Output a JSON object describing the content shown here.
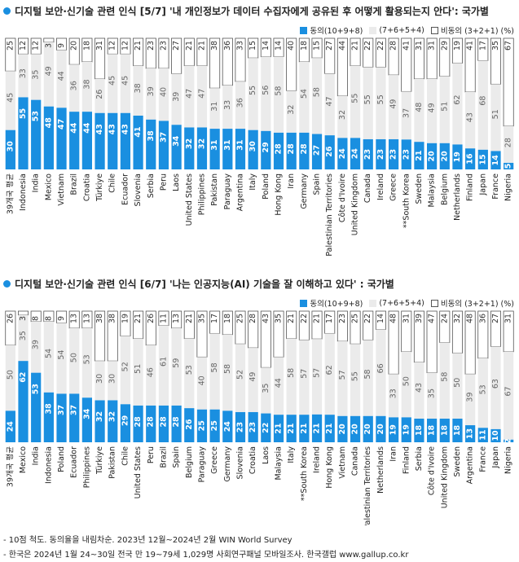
{
  "legend": {
    "agree": "동의(10+9+8)",
    "neutral": "(7+6+5+4)",
    "disagree": "비동의 (3+2+1) (%)"
  },
  "colors": {
    "agree": "#1a8fe0",
    "neutral": "#ebebeb",
    "disagree": "#ffffff",
    "title_bullet": "#1a8fe0"
  },
  "footnotes": [
    "- 10점 척도. 동의율을 내림차순. 2023년 12월~2024년 2월 WIN World Survey",
    "- 한국은 2024년 1월 24~30일 전국 만 19~79세 1,029명 사회연구패널 모바일조사. 한국갤럽 www.gallup.co.kr"
  ],
  "chart_data": [
    {
      "type": "bar",
      "stacked": true,
      "title": "디지털 보안·신기술 관련 인식 [5/7] '내 개인정보가 데이터 수집자에게 공유된 후 어떻게 활용되는지 안다': 국가별",
      "categories": [
        "39개국 평균",
        "Indonesia",
        "India",
        "Mexico",
        "Vietnam",
        "Brazil",
        "Croatia",
        "Türkiye",
        "Chile",
        "Ecuador",
        "Slovenia",
        "Serbia",
        "Peru",
        "Laos",
        "United States",
        "Philippines",
        "Pakistan",
        "Paraguay",
        "Argentina",
        "Italy",
        "Poland",
        "Hong Kong",
        "Iran",
        "Germany",
        "Spain",
        "Palestinian Territories",
        "Côte d'Ivoire",
        "United Kingdom",
        "Canada",
        "Ireland",
        "Greece",
        "**South Korea",
        "Sweden",
        "Malaysia",
        "Belgium",
        "Netherlands",
        "Finland",
        "Japan",
        "France",
        "Nigeria"
      ],
      "series": [
        {
          "name": "동의(10+9+8)",
          "values": [
            30,
            55,
            53,
            48,
            47,
            44,
            44,
            43,
            43,
            43,
            41,
            38,
            37,
            34,
            32,
            32,
            31,
            31,
            31,
            30,
            29,
            28,
            28,
            28,
            27,
            26,
            24,
            24,
            23,
            23,
            23,
            23,
            21,
            20,
            20,
            19,
            16,
            15,
            14,
            5
          ]
        },
        {
          "name": "(7+6+5+4)",
          "values": [
            45,
            33,
            35,
            49,
            44,
            36,
            38,
            26,
            45,
            45,
            38,
            39,
            40,
            39,
            47,
            47,
            31,
            33,
            36,
            55,
            56,
            58,
            32,
            54,
            58,
            47,
            32,
            55,
            55,
            55,
            49,
            37,
            48,
            49,
            51,
            62,
            43,
            68,
            51,
            28
          ]
        },
        {
          "name": "비동의 (3+2+1) (%)",
          "values": [
            25,
            12,
            12,
            3,
            9,
            20,
            18,
            31,
            12,
            12,
            21,
            23,
            23,
            27,
            21,
            21,
            38,
            36,
            33,
            15,
            14,
            14,
            40,
            18,
            15,
            27,
            44,
            21,
            22,
            22,
            28,
            41,
            31,
            31,
            29,
            19,
            41,
            17,
            35,
            67
          ]
        }
      ],
      "ylim": [
        0,
        100
      ]
    },
    {
      "type": "bar",
      "stacked": true,
      "title": "디지털 보안·신기술 관련 인식 [6/7] '나는 인공지능(AI) 기술을 잘 이해하고 있다' : 국가별",
      "categories": [
        "39개국 평균",
        "Mexico",
        "India",
        "Indonesia",
        "Poland",
        "Ecuador",
        "Philippines",
        "Türkiye",
        "Pakistan",
        "Chile",
        "United States",
        "Peru",
        "Brazil",
        "Spain",
        "Belgium",
        "Paraguay",
        "Greece",
        "Germany",
        "Slovenia",
        "Croatia",
        "Laos",
        "Malaysia",
        "Italy",
        "**South Korea",
        "Ireland",
        "Hong Kong",
        "Vietnam",
        "Canada",
        "Palestinian Territories",
        "Netherlands",
        "Iran",
        "Finland",
        "Serbia",
        "Côte d'Ivoire",
        "United Kingdom",
        "Sweden",
        "Argentina",
        "France",
        "Japan",
        "Nigeria"
      ],
      "series": [
        {
          "name": "동의(10+9+8)",
          "values": [
            24,
            62,
            53,
            38,
            37,
            37,
            34,
            32,
            32,
            29,
            28,
            28,
            28,
            28,
            26,
            25,
            25,
            24,
            23,
            23,
            22,
            21,
            21,
            21,
            21,
            21,
            20,
            20,
            20,
            20,
            19,
            19,
            18,
            18,
            18,
            18,
            13,
            11,
            10,
            2
          ]
        },
        {
          "name": "(7+6+5+4)",
          "values": [
            50,
            35,
            39,
            54,
            54,
            50,
            53,
            30,
            30,
            52,
            51,
            46,
            61,
            59,
            53,
            40,
            58,
            58,
            52,
            49,
            35,
            44,
            58,
            57,
            57,
            62,
            57,
            55,
            58,
            66,
            33,
            50,
            43,
            35,
            58,
            50,
            39,
            53,
            63,
            67
          ]
        },
        {
          "name": "비동의 (3+2+1) (%)",
          "values": [
            26,
            3,
            8,
            8,
            9,
            13,
            13,
            38,
            38,
            19,
            21,
            26,
            11,
            13,
            21,
            35,
            17,
            18,
            25,
            28,
            43,
            35,
            21,
            22,
            21,
            17,
            23,
            25,
            22,
            14,
            48,
            31,
            39,
            47,
            24,
            32,
            48,
            36,
            27,
            31
          ]
        }
      ],
      "ylim": [
        0,
        100
      ]
    }
  ]
}
